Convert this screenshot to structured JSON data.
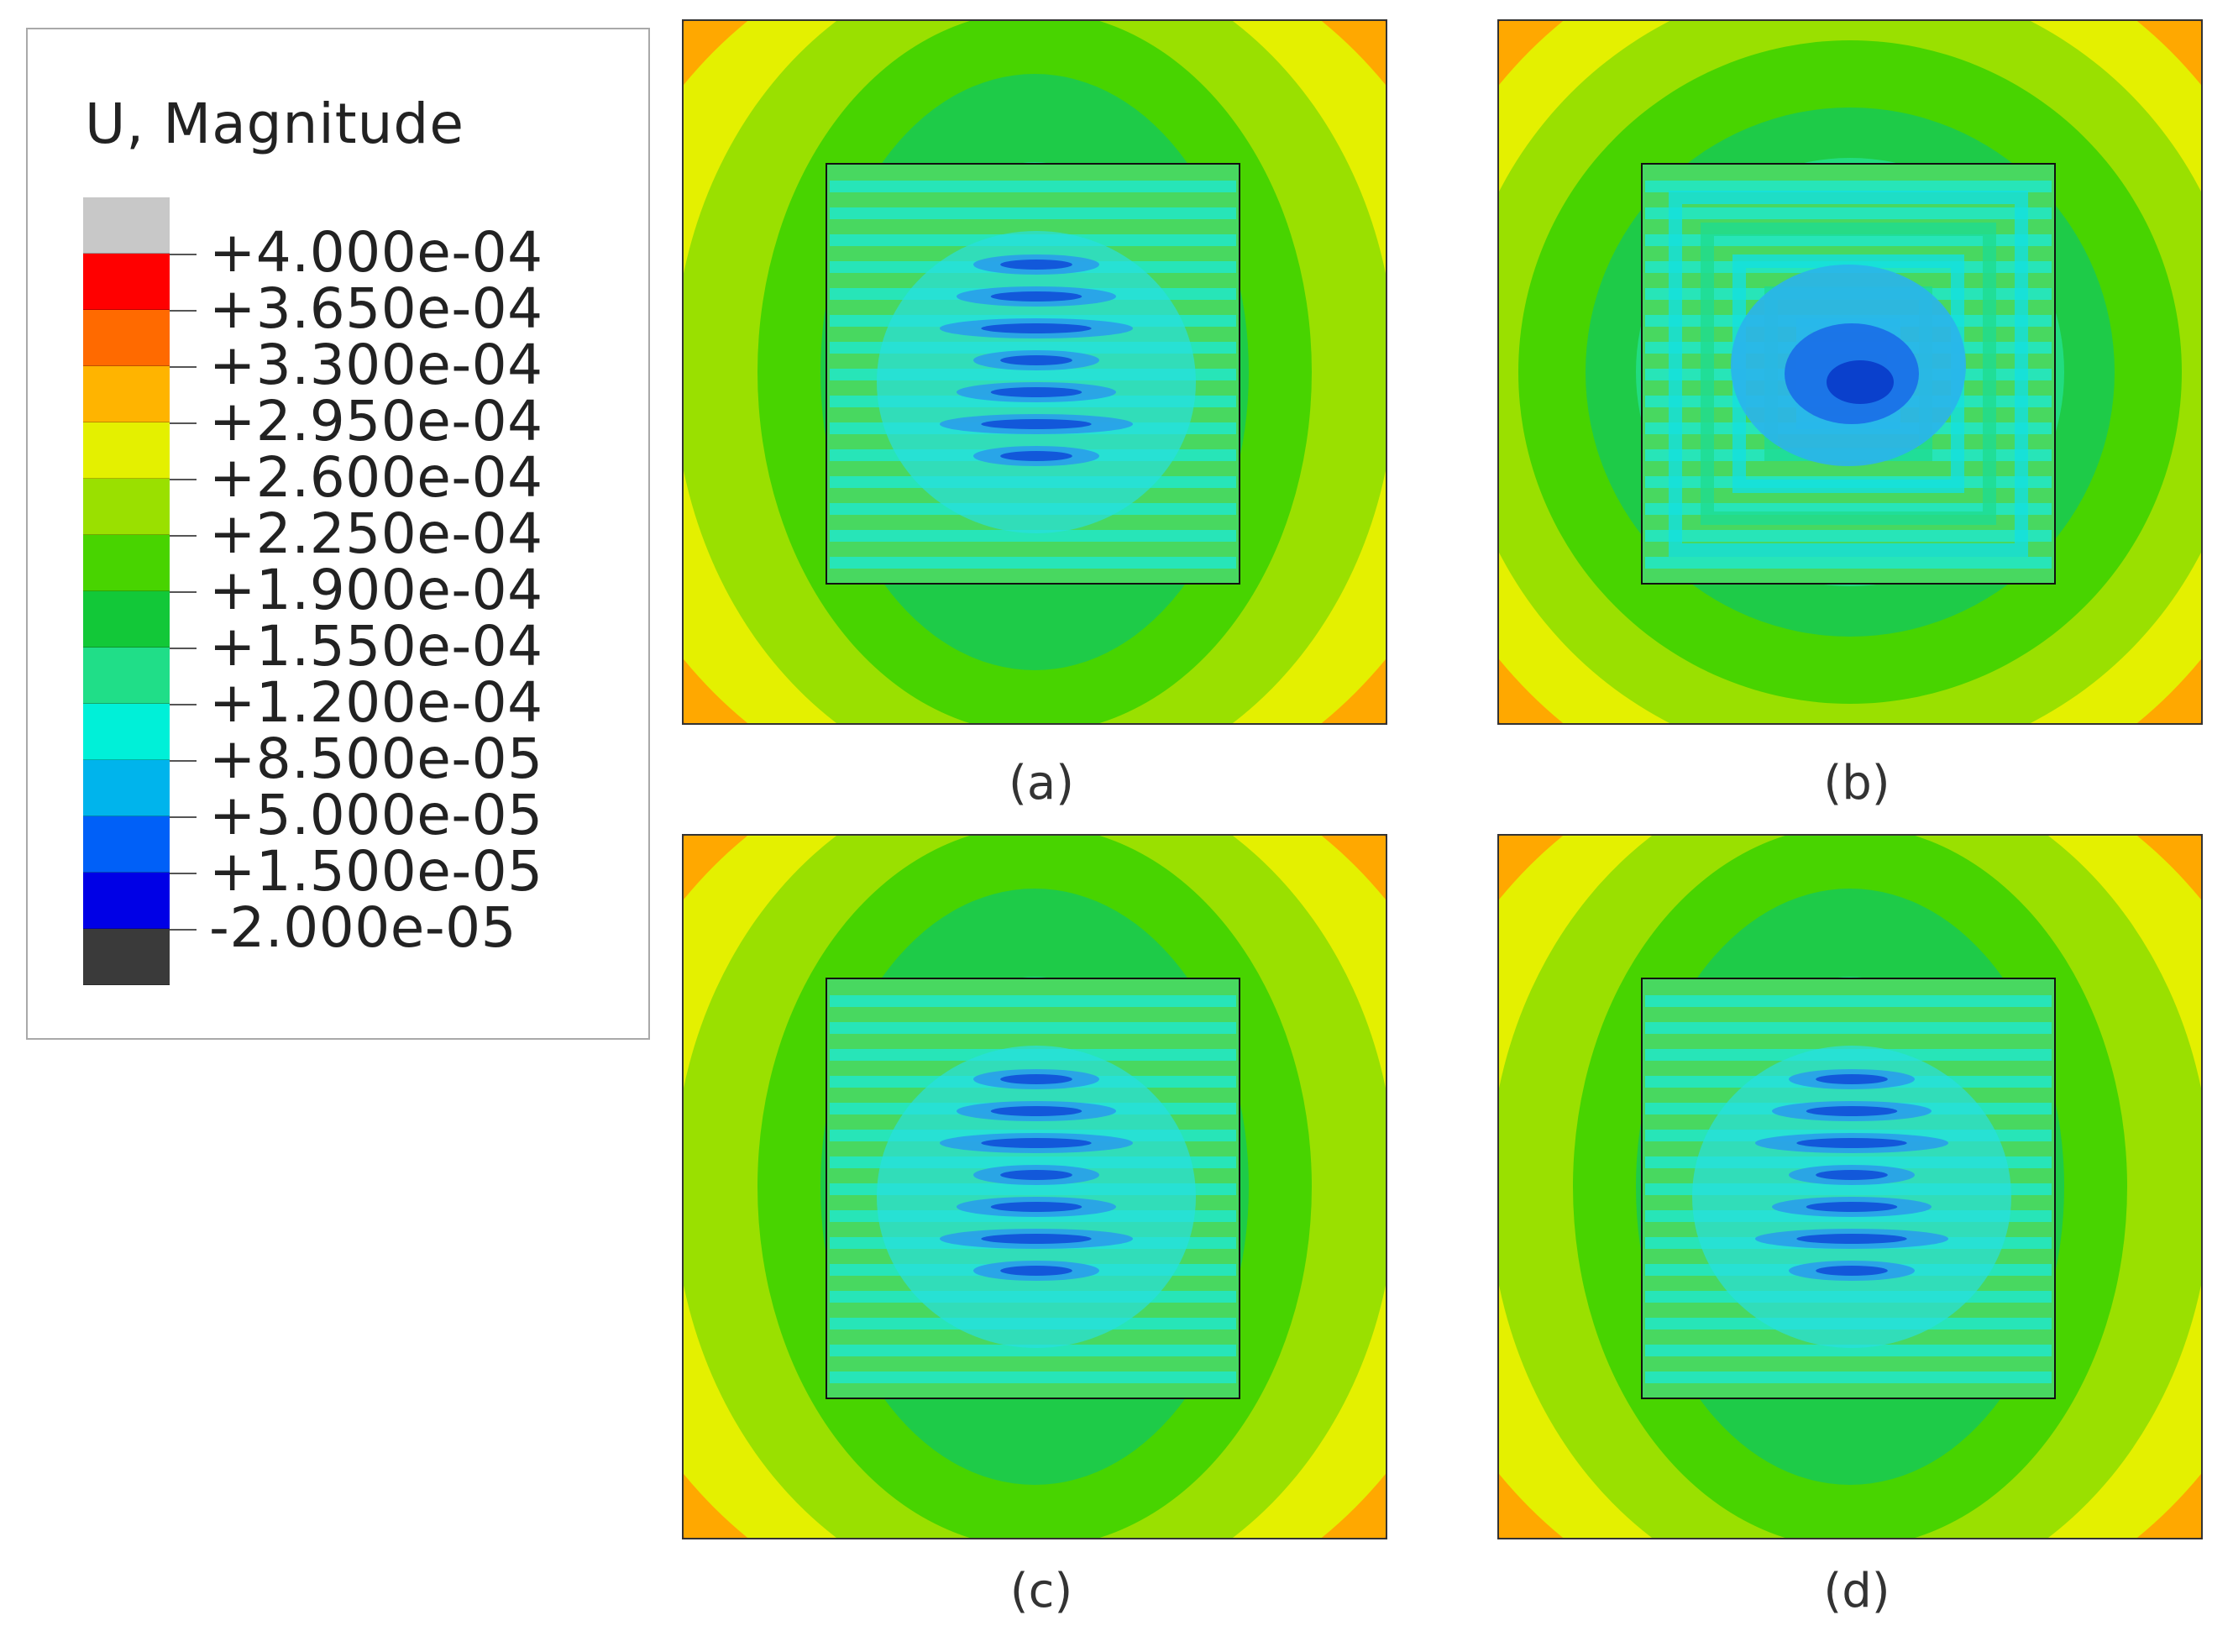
{
  "legend": {
    "title": "U, Magnitude",
    "colors": [
      "#c8c8c8",
      "#ff0000",
      "#ff6a00",
      "#ffb400",
      "#e4f000",
      "#9ae000",
      "#48d400",
      "#12c838",
      "#20de88",
      "#00f0d8",
      "#00b4ec",
      "#0060f8",
      "#0000e6",
      "#3a3a3a"
    ],
    "tick_labels": [
      "+4.000e-04",
      "+3.650e-04",
      "+3.300e-04",
      "+2.950e-04",
      "+2.600e-04",
      "+2.250e-04",
      "+1.900e-04",
      "+1.550e-04",
      "+1.200e-04",
      "+8.500e-05",
      "+5.000e-05",
      "+1.500e-05",
      "-2.000e-05"
    ]
  },
  "panels": [
    {
      "caption": "(a)",
      "pattern": "stripes"
    },
    {
      "caption": "(b)",
      "pattern": "center"
    },
    {
      "caption": "(c)",
      "pattern": "stripes"
    },
    {
      "caption": "(d)",
      "pattern": "stripes"
    }
  ]
}
